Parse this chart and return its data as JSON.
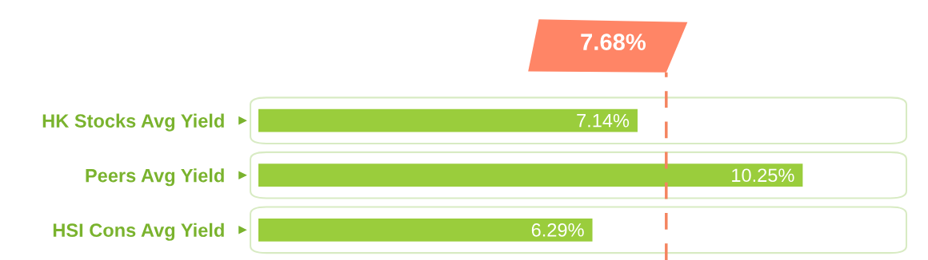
{
  "chart_data": {
    "type": "bar",
    "orientation": "horizontal",
    "categories": [
      "HK Stocks Avg Yield",
      "Peers Avg Yield",
      "HSI Cons Avg Yield"
    ],
    "values": [
      7.14,
      10.25,
      6.29
    ],
    "value_labels": [
      "7.14%",
      "10.25%",
      "6.29%"
    ],
    "color": "#9acd3c",
    "tick_labels": "y",
    "grid": false,
    "legend": false,
    "ref_lines": [
      {
        "axis": "x",
        "value": 7.68,
        "label": "7.68%",
        "color": "#f4845f",
        "line_style": "dashed"
      }
    ]
  }
}
